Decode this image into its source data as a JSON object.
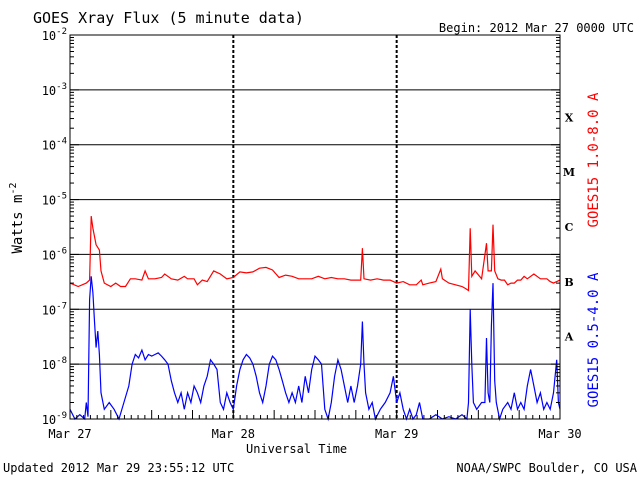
{
  "chart_data": {
    "type": "line",
    "title": "GOES Xray Flux (5 minute data)",
    "begin": "Begin:  2012 Mar 27 0000 UTC",
    "xlabel": "Universal Time",
    "ylabel": "Watts m",
    "ylabel_exponent": "-2",
    "y_scale": "log",
    "ylim": [
      1e-09,
      0.01
    ],
    "y_tick_labels": [
      {
        "base": "10",
        "exp": "-2",
        "value": 0.01
      },
      {
        "base": "10",
        "exp": "-3",
        "value": 0.001
      },
      {
        "base": "10",
        "exp": "-4",
        "value": 0.0001
      },
      {
        "base": "10",
        "exp": "-5",
        "value": 1e-05
      },
      {
        "base": "10",
        "exp": "-6",
        "value": 1e-06
      },
      {
        "base": "10",
        "exp": "-7",
        "value": 1e-07
      },
      {
        "base": "10",
        "exp": "-8",
        "value": 1e-08
      },
      {
        "base": "10",
        "exp": "-9",
        "value": 1e-09
      }
    ],
    "x_range_days": [
      0,
      3
    ],
    "x_tick_labels": [
      {
        "label": "Mar 27",
        "day": 0
      },
      {
        "label": "Mar 28",
        "day": 1
      },
      {
        "label": "Mar 29",
        "day": 2
      },
      {
        "label": "Mar 30",
        "day": 3
      }
    ],
    "flare_classes": [
      {
        "label": "X",
        "value": 0.0001
      },
      {
        "label": "M",
        "value": 1e-05
      },
      {
        "label": "C",
        "value": 1e-06
      },
      {
        "label": "B",
        "value": 1e-07
      },
      {
        "label": "A",
        "value": 1e-08
      }
    ],
    "grid": "horizontal lines at each decade, dashed vertical lines at day boundaries",
    "series": [
      {
        "name": "GOES15 1.0-8.0 A",
        "color": "#ff0000",
        "points": [
          [
            0.0,
            3e-07
          ],
          [
            0.05,
            2.6e-07
          ],
          [
            0.1,
            3e-07
          ],
          [
            0.12,
            3.4e-07
          ],
          [
            0.13,
            5e-06
          ],
          [
            0.14,
            3e-06
          ],
          [
            0.16,
            1.5e-06
          ],
          [
            0.18,
            1.2e-06
          ],
          [
            0.19,
            5e-07
          ],
          [
            0.21,
            3e-07
          ],
          [
            0.25,
            2.6e-07
          ],
          [
            0.28,
            3e-07
          ],
          [
            0.31,
            2.6e-07
          ],
          [
            0.34,
            2.6e-07
          ],
          [
            0.37,
            3.6e-07
          ],
          [
            0.4,
            3.6e-07
          ],
          [
            0.44,
            3.4e-07
          ],
          [
            0.46,
            5e-07
          ],
          [
            0.48,
            3.6e-07
          ],
          [
            0.52,
            3.6e-07
          ],
          [
            0.56,
            3.8e-07
          ],
          [
            0.58,
            4.4e-07
          ],
          [
            0.62,
            3.6e-07
          ],
          [
            0.66,
            3.4e-07
          ],
          [
            0.7,
            4e-07
          ],
          [
            0.72,
            3.6e-07
          ],
          [
            0.76,
            3.6e-07
          ],
          [
            0.78,
            2.8e-07
          ],
          [
            0.81,
            3.4e-07
          ],
          [
            0.84,
            3.2e-07
          ],
          [
            0.88,
            5e-07
          ],
          [
            0.92,
            4.4e-07
          ],
          [
            0.96,
            3.6e-07
          ],
          [
            1.0,
            3.8e-07
          ],
          [
            1.04,
            4.8e-07
          ],
          [
            1.08,
            4.6e-07
          ],
          [
            1.12,
            4.8e-07
          ],
          [
            1.16,
            5.6e-07
          ],
          [
            1.2,
            5.8e-07
          ],
          [
            1.24,
            5.2e-07
          ],
          [
            1.28,
            3.8e-07
          ],
          [
            1.32,
            4.2e-07
          ],
          [
            1.36,
            4e-07
          ],
          [
            1.4,
            3.6e-07
          ],
          [
            1.44,
            3.6e-07
          ],
          [
            1.48,
            3.6e-07
          ],
          [
            1.52,
            4e-07
          ],
          [
            1.56,
            3.6e-07
          ],
          [
            1.6,
            3.8e-07
          ],
          [
            1.64,
            3.6e-07
          ],
          [
            1.68,
            3.6e-07
          ],
          [
            1.72,
            3.4e-07
          ],
          [
            1.76,
            3.4e-07
          ],
          [
            1.78,
            3.4e-07
          ],
          [
            1.79,
            1.3e-06
          ],
          [
            1.8,
            3.6e-07
          ],
          [
            1.84,
            3.4e-07
          ],
          [
            1.88,
            3.6e-07
          ],
          [
            1.92,
            3.4e-07
          ],
          [
            1.96,
            3.4e-07
          ],
          [
            2.0,
            3e-07
          ],
          [
            2.04,
            3.2e-07
          ],
          [
            2.08,
            2.8e-07
          ],
          [
            2.12,
            2.8e-07
          ],
          [
            2.15,
            3.4e-07
          ],
          [
            2.16,
            2.8e-07
          ],
          [
            2.2,
            3e-07
          ],
          [
            2.24,
            3.2e-07
          ],
          [
            2.27,
            5.4e-07
          ],
          [
            2.28,
            3.6e-07
          ],
          [
            2.32,
            3e-07
          ],
          [
            2.36,
            2.8e-07
          ],
          [
            2.4,
            2.6e-07
          ],
          [
            2.42,
            2.4e-07
          ],
          [
            2.44,
            2.2e-07
          ],
          [
            2.45,
            3e-06
          ],
          [
            2.46,
            4e-07
          ],
          [
            2.48,
            5e-07
          ],
          [
            2.52,
            3.6e-07
          ],
          [
            2.55,
            1.6e-06
          ],
          [
            2.56,
            5e-07
          ],
          [
            2.58,
            5e-07
          ],
          [
            2.59,
            3.5e-06
          ],
          [
            2.6,
            5e-07
          ],
          [
            2.62,
            3.6e-07
          ],
          [
            2.64,
            3.4e-07
          ],
          [
            2.66,
            3.4e-07
          ],
          [
            2.68,
            2.8e-07
          ],
          [
            2.7,
            3e-07
          ],
          [
            2.72,
            3e-07
          ],
          [
            2.74,
            3.4e-07
          ],
          [
            2.76,
            3.4e-07
          ],
          [
            2.78,
            4e-07
          ],
          [
            2.8,
            3.6e-07
          ],
          [
            2.84,
            4.4e-07
          ],
          [
            2.88,
            3.6e-07
          ],
          [
            2.92,
            3.6e-07
          ],
          [
            2.94,
            3.2e-07
          ],
          [
            2.96,
            3e-07
          ],
          [
            2.98,
            3.2e-07
          ],
          [
            3.0,
            3.4e-07
          ]
        ]
      },
      {
        "name": "GOES15 0.5-4.0 A",
        "color": "#0000ff",
        "points": [
          [
            0.0,
            1.5e-09
          ],
          [
            0.03,
            1e-09
          ],
          [
            0.06,
            1.2e-09
          ],
          [
            0.09,
            1e-09
          ],
          [
            0.1,
            2e-09
          ],
          [
            0.11,
            1.1e-09
          ],
          [
            0.12,
            1.5e-07
          ],
          [
            0.13,
            4e-07
          ],
          [
            0.14,
            2e-07
          ],
          [
            0.15,
            6e-08
          ],
          [
            0.16,
            2e-08
          ],
          [
            0.17,
            4e-08
          ],
          [
            0.18,
            1.5e-08
          ],
          [
            0.19,
            3e-09
          ],
          [
            0.21,
            1.5e-09
          ],
          [
            0.24,
            2e-09
          ],
          [
            0.27,
            1.5e-09
          ],
          [
            0.3,
            1e-09
          ],
          [
            0.33,
            2e-09
          ],
          [
            0.36,
            4e-09
          ],
          [
            0.38,
            1e-08
          ],
          [
            0.4,
            1.5e-08
          ],
          [
            0.42,
            1.3e-08
          ],
          [
            0.44,
            1.8e-08
          ],
          [
            0.46,
            1.2e-08
          ],
          [
            0.48,
            1.5e-08
          ],
          [
            0.5,
            1.4e-08
          ],
          [
            0.52,
            1.5e-08
          ],
          [
            0.54,
            1.6e-08
          ],
          [
            0.56,
            1.4e-08
          ],
          [
            0.58,
            1.2e-08
          ],
          [
            0.6,
            1e-08
          ],
          [
            0.62,
            5e-09
          ],
          [
            0.64,
            3e-09
          ],
          [
            0.66,
            2e-09
          ],
          [
            0.68,
            3e-09
          ],
          [
            0.7,
            1.5e-09
          ],
          [
            0.72,
            3e-09
          ],
          [
            0.74,
            2e-09
          ],
          [
            0.76,
            4e-09
          ],
          [
            0.78,
            3e-09
          ],
          [
            0.8,
            2e-09
          ],
          [
            0.82,
            4e-09
          ],
          [
            0.84,
            6e-09
          ],
          [
            0.86,
            1.2e-08
          ],
          [
            0.88,
            1e-08
          ],
          [
            0.9,
            8e-09
          ],
          [
            0.92,
            2e-09
          ],
          [
            0.94,
            1.5e-09
          ],
          [
            0.96,
            3e-09
          ],
          [
            0.98,
            2e-09
          ],
          [
            1.0,
            1.5e-09
          ],
          [
            1.02,
            4e-09
          ],
          [
            1.04,
            8e-09
          ],
          [
            1.06,
            1.2e-08
          ],
          [
            1.08,
            1.5e-08
          ],
          [
            1.1,
            1.3e-08
          ],
          [
            1.12,
            1e-08
          ],
          [
            1.14,
            6e-09
          ],
          [
            1.16,
            3e-09
          ],
          [
            1.18,
            2e-09
          ],
          [
            1.2,
            4e-09
          ],
          [
            1.22,
            1e-08
          ],
          [
            1.24,
            1.4e-08
          ],
          [
            1.26,
            1.2e-08
          ],
          [
            1.28,
            8e-09
          ],
          [
            1.3,
            5e-09
          ],
          [
            1.32,
            3e-09
          ],
          [
            1.34,
            2e-09
          ],
          [
            1.36,
            3e-09
          ],
          [
            1.38,
            2e-09
          ],
          [
            1.4,
            4e-09
          ],
          [
            1.42,
            2e-09
          ],
          [
            1.44,
            6e-09
          ],
          [
            1.46,
            3e-09
          ],
          [
            1.48,
            8e-09
          ],
          [
            1.5,
            1.4e-08
          ],
          [
            1.52,
            1.2e-08
          ],
          [
            1.54,
            1e-08
          ],
          [
            1.56,
            1.5e-09
          ],
          [
            1.58,
            1e-09
          ],
          [
            1.6,
            2e-09
          ],
          [
            1.62,
            6e-09
          ],
          [
            1.64,
            1.2e-08
          ],
          [
            1.66,
            8e-09
          ],
          [
            1.68,
            4e-09
          ],
          [
            1.7,
            2e-09
          ],
          [
            1.72,
            4e-09
          ],
          [
            1.74,
            2e-09
          ],
          [
            1.76,
            4e-09
          ],
          [
            1.78,
            1e-08
          ],
          [
            1.79,
            6e-08
          ],
          [
            1.8,
            1e-08
          ],
          [
            1.81,
            3e-09
          ],
          [
            1.83,
            1.5e-09
          ],
          [
            1.85,
            2e-09
          ],
          [
            1.87,
            1e-09
          ],
          [
            1.9,
            1.5e-09
          ],
          [
            1.93,
            2e-09
          ],
          [
            1.96,
            3e-09
          ],
          [
            1.98,
            6e-09
          ],
          [
            2.0,
            2e-09
          ],
          [
            2.02,
            3e-09
          ],
          [
            2.04,
            1.5e-09
          ],
          [
            2.06,
            1e-09
          ],
          [
            2.08,
            1.5e-09
          ],
          [
            2.1,
            1e-09
          ],
          [
            2.12,
            1.2e-09
          ],
          [
            2.14,
            2e-09
          ],
          [
            2.16,
            1e-09
          ],
          [
            2.2,
            1e-09
          ],
          [
            2.24,
            1.2e-09
          ],
          [
            2.28,
            1e-09
          ],
          [
            2.32,
            1.1e-09
          ],
          [
            2.36,
            1e-09
          ],
          [
            2.4,
            1.2e-09
          ],
          [
            2.43,
            1e-09
          ],
          [
            2.44,
            2e-09
          ],
          [
            2.45,
            1e-07
          ],
          [
            2.46,
            1e-08
          ],
          [
            2.47,
            2e-09
          ],
          [
            2.49,
            1.5e-09
          ],
          [
            2.52,
            2e-09
          ],
          [
            2.54,
            2e-09
          ],
          [
            2.55,
            3e-08
          ],
          [
            2.56,
            3e-09
          ],
          [
            2.57,
            2e-09
          ],
          [
            2.58,
            5e-08
          ],
          [
            2.59,
            3e-07
          ],
          [
            2.6,
            5e-09
          ],
          [
            2.61,
            2e-09
          ],
          [
            2.63,
            1e-09
          ],
          [
            2.65,
            1.5e-09
          ],
          [
            2.68,
            2e-09
          ],
          [
            2.7,
            1.5e-09
          ],
          [
            2.72,
            3e-09
          ],
          [
            2.74,
            1.5e-09
          ],
          [
            2.76,
            2e-09
          ],
          [
            2.78,
            1.5e-09
          ],
          [
            2.8,
            4e-09
          ],
          [
            2.82,
            8e-09
          ],
          [
            2.84,
            4e-09
          ],
          [
            2.86,
            2e-09
          ],
          [
            2.88,
            3e-09
          ],
          [
            2.9,
            1.5e-09
          ],
          [
            2.92,
            2e-09
          ],
          [
            2.94,
            1.5e-09
          ],
          [
            2.96,
            3e-09
          ],
          [
            2.98,
            1.2e-08
          ],
          [
            2.99,
            2e-09
          ],
          [
            3.0,
            1.5e-09
          ]
        ]
      }
    ]
  },
  "footer": {
    "updated": "Updated 2012 Mar 29 23:55:12 UTC",
    "credit": "NOAA/SWPC Boulder, CO USA"
  }
}
